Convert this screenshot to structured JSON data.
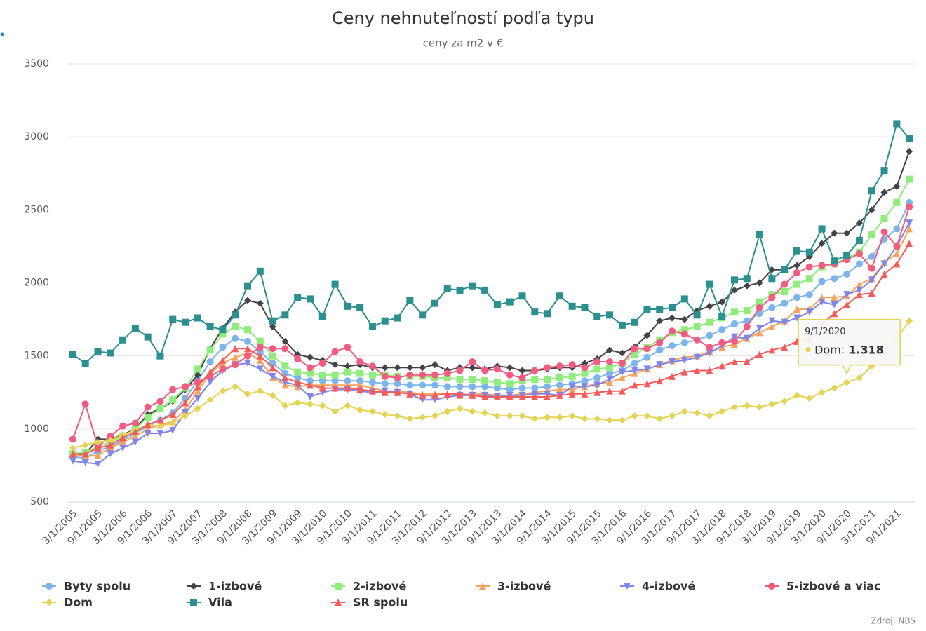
{
  "chart_data": {
    "type": "line",
    "title": "Ceny nehnuteľností podľa typu",
    "subtitle": "ceny za m2 v €",
    "credits": "Zdroj: NBS",
    "categories": [
      "3/1/2005",
      null,
      "9/1/2005",
      null,
      "3/1/2006",
      null,
      "9/1/2006",
      null,
      "3/1/2007",
      null,
      "9/1/2007",
      null,
      "3/1/2008",
      null,
      "9/1/2008",
      null,
      "3/1/2009",
      null,
      "9/1/2009",
      null,
      "3/1/2010",
      null,
      "9/1/2010",
      null,
      "3/1/2011",
      null,
      "9/1/2011",
      null,
      "3/1/2012",
      null,
      "9/1/2012",
      null,
      "3/1/2013",
      null,
      "9/1/2013",
      null,
      "3/1/2014",
      null,
      "9/1/2014",
      null,
      "3/1/2015",
      null,
      "9/1/2015",
      null,
      "3/1/2016",
      null,
      "9/1/2016",
      null,
      "3/1/2017",
      null,
      "9/1/2017",
      null,
      "3/1/2018",
      null,
      "9/1/2018",
      null,
      "3/1/2019",
      null,
      "9/1/2019",
      null,
      "3/1/2020",
      null,
      "9/1/2020",
      null,
      "3/1/2021",
      null,
      "9/1/2021",
      null
    ],
    "ylim": [
      500,
      3500
    ],
    "yticks": [
      500,
      1000,
      1500,
      2000,
      2500,
      3000,
      3500
    ],
    "grid": true,
    "legend": "bottom",
    "series": [
      {
        "name": "Byty spolu",
        "color": "#7cb5ec",
        "symbol": "circle",
        "values": [
          810,
          800,
          850,
          880,
          920,
          970,
          1020,
          1060,
          1110,
          1210,
          1330,
          1460,
          1560,
          1620,
          1600,
          1530,
          1450,
          1380,
          1350,
          1330,
          1330,
          1330,
          1330,
          1330,
          1320,
          1310,
          1310,
          1300,
          1300,
          1300,
          1290,
          1290,
          1290,
          1290,
          1280,
          1270,
          1280,
          1280,
          1290,
          1300,
          1310,
          1330,
          1350,
          1380,
          1400,
          1450,
          1490,
          1540,
          1570,
          1590,
          1610,
          1640,
          1680,
          1720,
          1740,
          1790,
          1830,
          1860,
          1900,
          1920,
          2010,
          2030,
          2060,
          2130,
          2180,
          2300,
          2370,
          2550
        ]
      },
      {
        "name": "1-izbové",
        "color": "#434348",
        "symbol": "diamond",
        "values": [
          820,
          830,
          930,
          930,
          960,
          1000,
          1100,
          1140,
          1190,
          1270,
          1370,
          1550,
          1690,
          1800,
          1880,
          1860,
          1700,
          1600,
          1510,
          1490,
          1470,
          1440,
          1430,
          1440,
          1420,
          1420,
          1420,
          1420,
          1420,
          1440,
          1400,
          1420,
          1420,
          1410,
          1430,
          1420,
          1400,
          1400,
          1410,
          1420,
          1420,
          1450,
          1480,
          1540,
          1520,
          1560,
          1640,
          1740,
          1760,
          1750,
          1810,
          1840,
          1870,
          1950,
          1980,
          2000,
          2090,
          2090,
          2120,
          2180,
          2270,
          2340,
          2340,
          2410,
          2500,
          2620,
          2660,
          2900
        ]
      },
      {
        "name": "2-izbové",
        "color": "#90ed7d",
        "symbol": "square",
        "values": [
          830,
          840,
          880,
          910,
          950,
          1000,
          1080,
          1140,
          1200,
          1280,
          1410,
          1540,
          1650,
          1700,
          1680,
          1600,
          1500,
          1430,
          1390,
          1380,
          1370,
          1370,
          1390,
          1380,
          1370,
          1370,
          1360,
          1360,
          1360,
          1350,
          1350,
          1340,
          1340,
          1330,
          1320,
          1310,
          1330,
          1340,
          1340,
          1350,
          1360,
          1380,
          1410,
          1420,
          1450,
          1510,
          1560,
          1610,
          1660,
          1680,
          1700,
          1730,
          1760,
          1800,
          1810,
          1870,
          1920,
          1940,
          1990,
          2030,
          2110,
          2130,
          2170,
          2210,
          2330,
          2440,
          2550,
          2710
        ]
      },
      {
        "name": "3-izbové",
        "color": "#f7a35c",
        "symbol": "triangle",
        "values": [
          830,
          810,
          820,
          870,
          910,
          950,
          1000,
          1030,
          1050,
          1130,
          1260,
          1380,
          1450,
          1490,
          1520,
          1470,
          1350,
          1300,
          1290,
          1300,
          1300,
          1300,
          1300,
          1300,
          1280,
          1260,
          1260,
          1250,
          1240,
          1240,
          1240,
          1230,
          1240,
          1240,
          1230,
          1230,
          1240,
          1250,
          1260,
          1270,
          1270,
          1290,
          1310,
          1320,
          1350,
          1380,
          1410,
          1440,
          1470,
          1490,
          1500,
          1530,
          1560,
          1580,
          1620,
          1660,
          1700,
          1740,
          1820,
          1820,
          1900,
          1900,
          1910,
          1990,
          2030,
          2140,
          2200,
          2370
        ]
      },
      {
        "name": "4-izbové",
        "color": "#8085e9",
        "symbol": "triangle-down",
        "values": [
          780,
          770,
          760,
          830,
          870,
          910,
          970,
          970,
          990,
          1110,
          1210,
          1320,
          1400,
          1440,
          1450,
          1410,
          1360,
          1320,
          1300,
          1220,
          1250,
          1270,
          1270,
          1260,
          1250,
          1260,
          1250,
          1240,
          1200,
          1200,
          1220,
          1230,
          1230,
          1230,
          1220,
          1230,
          1230,
          1240,
          1240,
          1230,
          1290,
          1290,
          1300,
          1340,
          1390,
          1400,
          1410,
          1440,
          1460,
          1470,
          1490,
          1520,
          1570,
          1630,
          1620,
          1690,
          1740,
          1730,
          1760,
          1800,
          1870,
          1850,
          1920,
          1950,
          2020,
          2130,
          2250,
          2410
        ]
      },
      {
        "name": "5-izbové a viac",
        "color": "#f15c80",
        "symbol": "circle",
        "values": [
          930,
          1170,
          880,
          950,
          1020,
          1040,
          1150,
          1190,
          1270,
          1290,
          1320,
          1360,
          1410,
          1440,
          1500,
          1560,
          1550,
          1550,
          1480,
          1420,
          1450,
          1530,
          1560,
          1460,
          1430,
          1360,
          1350,
          1370,
          1370,
          1370,
          1380,
          1400,
          1460,
          1400,
          1410,
          1370,
          1350,
          1400,
          1420,
          1430,
          1440,
          1420,
          1460,
          1460,
          1450,
          1550,
          1550,
          1590,
          1670,
          1650,
          1610,
          1560,
          1590,
          1600,
          1700,
          1830,
          1900,
          1990,
          2070,
          2110,
          2120,
          2130,
          2160,
          2200,
          2100,
          2350,
          2250,
          2520
        ]
      },
      {
        "name": "Dom",
        "color": "#e4d354",
        "symbol": "diamond",
        "values": [
          870,
          890,
          910,
          920,
          960,
          990,
          1030,
          1020,
          1040,
          1090,
          1140,
          1200,
          1260,
          1290,
          1240,
          1260,
          1230,
          1160,
          1180,
          1170,
          1160,
          1120,
          1160,
          1130,
          1120,
          1100,
          1090,
          1070,
          1080,
          1090,
          1120,
          1140,
          1120,
          1110,
          1090,
          1090,
          1090,
          1070,
          1080,
          1080,
          1090,
          1070,
          1070,
          1060,
          1060,
          1090,
          1090,
          1070,
          1090,
          1120,
          1110,
          1090,
          1120,
          1150,
          1160,
          1150,
          1170,
          1190,
          1230,
          1210,
          1250,
          1280,
          1318,
          1350,
          1430,
          1520,
          1620,
          1740
        ]
      },
      {
        "name": "Vila",
        "color": "#2b908f",
        "symbol": "square",
        "values": [
          1510,
          1450,
          1530,
          1520,
          1610,
          1690,
          1630,
          1500,
          1750,
          1730,
          1760,
          1700,
          1680,
          1780,
          1980,
          2080,
          1740,
          1780,
          1900,
          1890,
          1770,
          1990,
          1840,
          1830,
          1700,
          1740,
          1760,
          1880,
          1780,
          1860,
          1960,
          1950,
          1980,
          1950,
          1850,
          1870,
          1910,
          1800,
          1790,
          1910,
          1840,
          1830,
          1770,
          1780,
          1710,
          1730,
          1820,
          1820,
          1830,
          1890,
          1780,
          1990,
          1770,
          2020,
          2030,
          2330,
          2030,
          2090,
          2220,
          2210,
          2370,
          2150,
          2190,
          2290,
          2630,
          2770,
          3090,
          2990
        ]
      },
      {
        "name": "SR spolu",
        "color": "#f45b5b",
        "symbol": "triangle",
        "values": [
          830,
          830,
          870,
          890,
          940,
          980,
          1030,
          1060,
          1100,
          1180,
          1290,
          1390,
          1470,
          1550,
          1550,
          1500,
          1420,
          1350,
          1320,
          1300,
          1280,
          1280,
          1280,
          1270,
          1260,
          1250,
          1250,
          1240,
          1230,
          1230,
          1240,
          1240,
          1230,
          1220,
          1220,
          1220,
          1220,
          1220,
          1220,
          1230,
          1240,
          1240,
          1250,
          1260,
          1260,
          1300,
          1310,
          1330,
          1360,
          1390,
          1400,
          1400,
          1430,
          1460,
          1460,
          1510,
          1540,
          1560,
          1600,
          1610,
          1720,
          1790,
          1850,
          1920,
          1930,
          2060,
          2130,
          2270
        ]
      }
    ],
    "tooltip": {
      "category": "9/1/2020",
      "series": "Dom",
      "value": 1318,
      "value_label": "1.318"
    }
  }
}
